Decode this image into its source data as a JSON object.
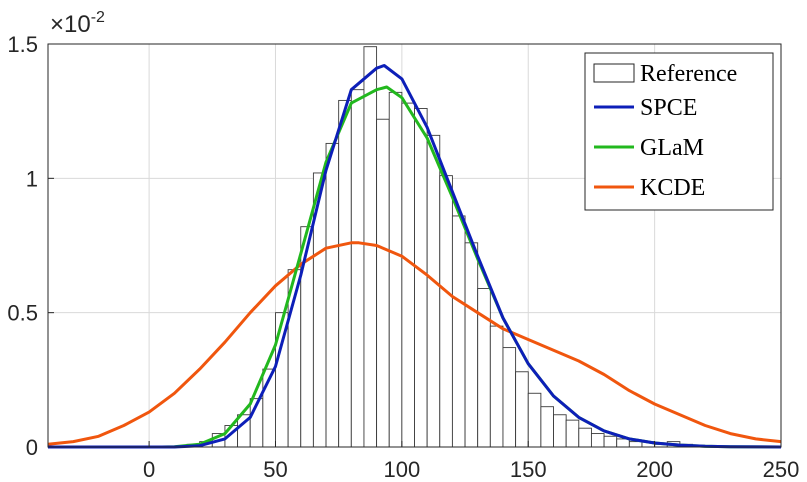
{
  "chart_data": {
    "type": "bar+line",
    "title": "",
    "xlabel": "",
    "ylabel": "",
    "y_multiplier": "×10",
    "y_multiplier_exp": "-2",
    "xlim": [
      -40,
      250
    ],
    "ylim": [
      0,
      1.5
    ],
    "xticks": [
      0,
      50,
      100,
      150,
      200,
      250
    ],
    "yticks": [
      0,
      0.5,
      1,
      1.5
    ],
    "ytick_labels": [
      "0",
      "0.5",
      "1",
      "1.5"
    ],
    "grid": true,
    "legend_position": "top-right",
    "histogram": {
      "name": "Reference",
      "bin_width": 5,
      "bin_starts": [
        15,
        20,
        25,
        30,
        35,
        40,
        45,
        50,
        55,
        60,
        65,
        70,
        75,
        80,
        85,
        90,
        95,
        100,
        105,
        110,
        115,
        120,
        125,
        130,
        135,
        140,
        145,
        150,
        155,
        160,
        165,
        170,
        175,
        180,
        185,
        190,
        195,
        200,
        205,
        210
      ],
      "values": [
        0.01,
        0.02,
        0.05,
        0.08,
        0.12,
        0.18,
        0.29,
        0.5,
        0.66,
        0.82,
        1.02,
        1.13,
        1.29,
        1.33,
        1.49,
        1.22,
        1.32,
        1.28,
        1.26,
        1.16,
        1.01,
        0.86,
        0.76,
        0.59,
        0.45,
        0.37,
        0.28,
        0.2,
        0.15,
        0.12,
        0.1,
        0.07,
        0.05,
        0.04,
        0.03,
        0.02,
        0.02,
        0.01,
        0.02,
        0.01
      ]
    },
    "series": [
      {
        "name": "SPCE",
        "color": "#0d1fb8",
        "x": [
          -40,
          0,
          5,
          10,
          20,
          30,
          40,
          50,
          60,
          70,
          80,
          90,
          93,
          100,
          110,
          120,
          130,
          140,
          150,
          160,
          170,
          180,
          190,
          200,
          210,
          220,
          230,
          250
        ],
        "y": [
          0,
          0,
          0,
          0,
          0.005,
          0.03,
          0.11,
          0.3,
          0.64,
          1.03,
          1.33,
          1.41,
          1.42,
          1.37,
          1.19,
          0.95,
          0.71,
          0.48,
          0.31,
          0.19,
          0.11,
          0.06,
          0.03,
          0.015,
          0.007,
          0.003,
          0.001,
          0
        ]
      },
      {
        "name": "GLaM",
        "color": "#22b81e",
        "x": [
          -40,
          0,
          5,
          10,
          20,
          30,
          40,
          50,
          60,
          70,
          80,
          90,
          94,
          100,
          110,
          120,
          130,
          140,
          150,
          160,
          170,
          180,
          190,
          200,
          210,
          220,
          230,
          250
        ],
        "y": [
          0,
          0,
          0,
          0.001,
          0.01,
          0.05,
          0.16,
          0.38,
          0.72,
          1.06,
          1.28,
          1.33,
          1.34,
          1.3,
          1.15,
          0.93,
          0.7,
          0.48,
          0.31,
          0.19,
          0.11,
          0.06,
          0.03,
          0.015,
          0.007,
          0.003,
          0.001,
          0
        ]
      },
      {
        "name": "KCDE",
        "color": "#f0560e",
        "x": [
          -40,
          -30,
          -20,
          -10,
          0,
          10,
          20,
          30,
          40,
          50,
          60,
          70,
          80,
          83,
          90,
          100,
          110,
          120,
          130,
          140,
          150,
          160,
          170,
          180,
          190,
          200,
          210,
          220,
          230,
          240,
          250
        ],
        "y": [
          0.01,
          0.02,
          0.04,
          0.08,
          0.13,
          0.2,
          0.29,
          0.39,
          0.5,
          0.6,
          0.68,
          0.74,
          0.76,
          0.76,
          0.75,
          0.71,
          0.64,
          0.56,
          0.5,
          0.44,
          0.4,
          0.36,
          0.32,
          0.27,
          0.21,
          0.16,
          0.12,
          0.08,
          0.05,
          0.03,
          0.02
        ]
      }
    ]
  }
}
